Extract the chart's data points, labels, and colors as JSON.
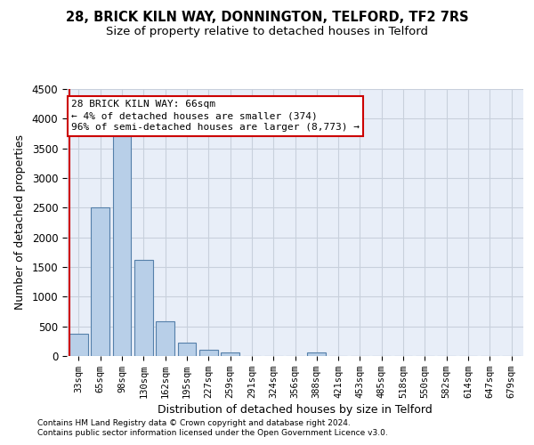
{
  "title1": "28, BRICK KILN WAY, DONNINGTON, TELFORD, TF2 7RS",
  "title2": "Size of property relative to detached houses in Telford",
  "xlabel": "Distribution of detached houses by size in Telford",
  "ylabel": "Number of detached properties",
  "footnote1": "Contains HM Land Registry data © Crown copyright and database right 2024.",
  "footnote2": "Contains public sector information licensed under the Open Government Licence v3.0.",
  "annotation_line1": "28 BRICK KILN WAY: 66sqm",
  "annotation_line2": "← 4% of detached houses are smaller (374)",
  "annotation_line3": "96% of semi-detached houses are larger (8,773) →",
  "bar_categories": [
    "33sqm",
    "65sqm",
    "98sqm",
    "130sqm",
    "162sqm",
    "195sqm",
    "227sqm",
    "259sqm",
    "291sqm",
    "324sqm",
    "356sqm",
    "388sqm",
    "421sqm",
    "453sqm",
    "485sqm",
    "518sqm",
    "550sqm",
    "582sqm",
    "614sqm",
    "647sqm",
    "679sqm"
  ],
  "bar_values": [
    370,
    2500,
    3700,
    1620,
    580,
    230,
    110,
    60,
    0,
    0,
    0,
    65,
    0,
    0,
    0,
    0,
    0,
    0,
    0,
    0,
    0
  ],
  "bar_color": "#b8cfe8",
  "bar_edgecolor": "#5580aa",
  "vline_color": "#cc0000",
  "ylim_max": 4500,
  "ytick_step": 500,
  "annotation_box_edgecolor": "#cc0000",
  "plot_bg_color": "#e8eef8",
  "grid_color": "#c8d0dc",
  "bg_color": "#ffffff"
}
